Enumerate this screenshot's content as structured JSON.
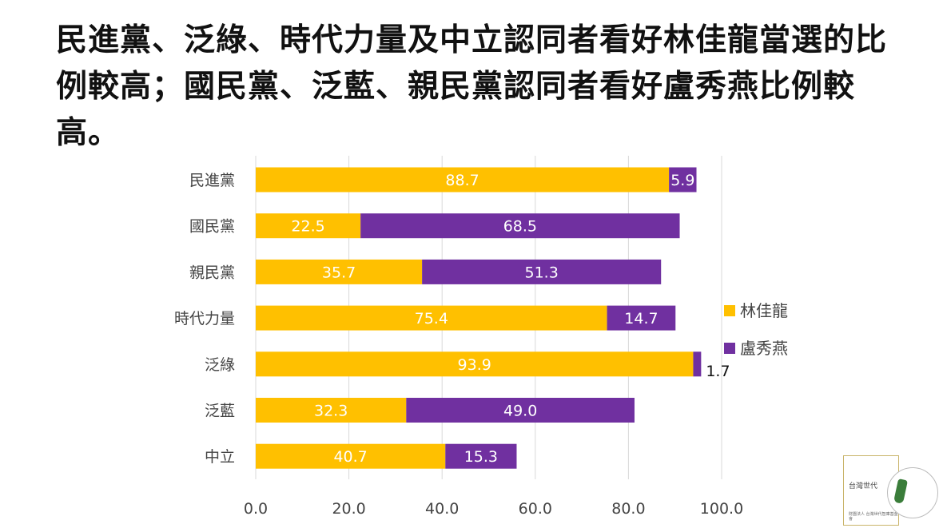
{
  "headline": "民進黨、泛綠、時代力量及中立認同者看好林佳龍當選的比例較高；國民黨、泛藍、親民黨認同者看好盧秀燕比例較高。",
  "logo": {
    "name": "台灣世代",
    "sub": "財團法人 台灣世代智庫基金會"
  },
  "colors": {
    "lin": "#FFC000",
    "lu": "#7030A0",
    "grid": "#d9d9d9"
  },
  "chart_data": {
    "type": "bar",
    "orientation": "horizontal",
    "stacked": true,
    "categories": [
      "民進黨",
      "國民黨",
      "親民黨",
      "時代力量",
      "泛綠",
      "泛藍",
      "中立"
    ],
    "series": [
      {
        "name": "林佳龍",
        "values": [
          88.7,
          22.5,
          35.7,
          75.4,
          93.9,
          32.3,
          40.7
        ]
      },
      {
        "name": "盧秀燕",
        "values": [
          5.9,
          68.5,
          51.3,
          14.7,
          1.7,
          49.0,
          15.3
        ]
      }
    ],
    "xlim": [
      0,
      100
    ],
    "xticks": [
      "0.0",
      "20.0",
      "40.0",
      "60.0",
      "80.0",
      "100.0"
    ],
    "grid": true,
    "legend": "right"
  }
}
